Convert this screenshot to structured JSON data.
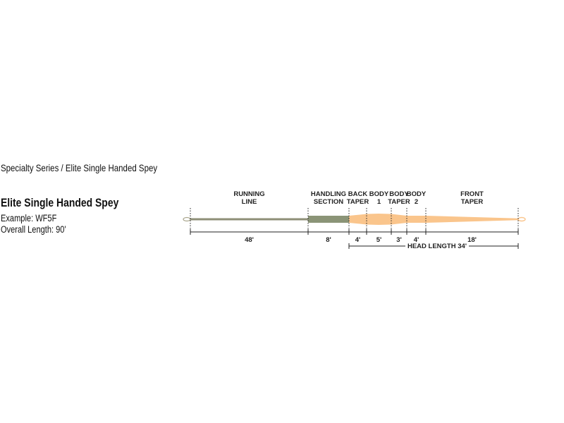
{
  "breadcrumb": "Specialty Series / Elite Single Handed Spey",
  "product": {
    "title": "Elite Single Handed Spey",
    "example": "Example: WF5F",
    "overall_length": "Overall Length: 90'"
  },
  "diagram": {
    "segments": [
      {
        "label": [
          "RUNNING",
          "LINE"
        ],
        "length": "48'"
      },
      {
        "label": [
          "HANDLING",
          "SECTION"
        ],
        "length": "8'"
      },
      {
        "label": [
          "BACK",
          "TAPER"
        ],
        "length": "4'"
      },
      {
        "label": [
          "BODY",
          "1"
        ],
        "length": "5'"
      },
      {
        "label": [
          "BODY",
          "TAPER"
        ],
        "length": "3'"
      },
      {
        "label": [
          "BODY",
          "2"
        ],
        "length": "4'"
      },
      {
        "label": [
          "FRONT",
          "TAPER"
        ],
        "length": "18'"
      }
    ],
    "head_length": "HEAD LENGTH 34'",
    "colors": {
      "running_line": "#8e8f77",
      "handling_section": "#8b9477",
      "head": "#fac58c",
      "ink": "#222222"
    }
  }
}
